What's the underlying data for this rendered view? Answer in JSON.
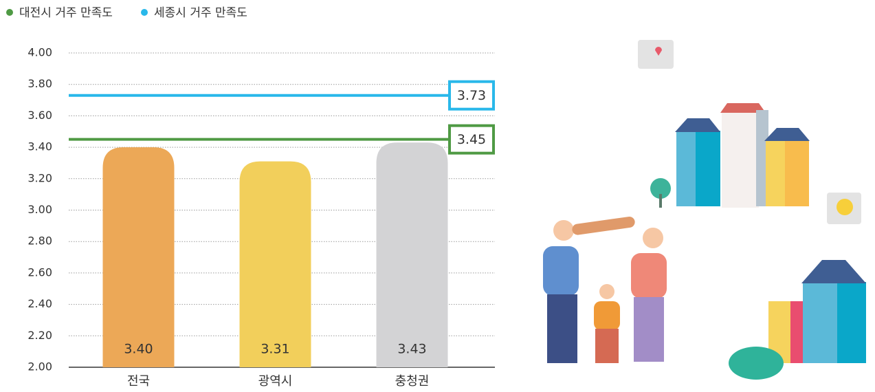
{
  "chart_data": {
    "type": "bar",
    "categories": [
      "전국",
      "광역시",
      "충청권"
    ],
    "values": [
      3.4,
      3.31,
      3.43
    ],
    "value_labels": [
      "3.40",
      "3.31",
      "3.43"
    ],
    "colors": [
      "#eca857",
      "#f2cf5b",
      "#d3d3d5"
    ],
    "reference_lines": [
      {
        "name": "대전시 거주 만족도",
        "color": "#4f9a44",
        "value": 3.45,
        "value_label": "3.45"
      },
      {
        "name": "세종시 거주 만족도",
        "color": "#29b8ea",
        "value": 3.73,
        "value_label": "3.73"
      }
    ],
    "ylim": [
      2,
      4
    ],
    "yticks": [
      {
        "value": 2,
        "label": "2.00"
      },
      {
        "value": 2.2,
        "label": "2.20"
      },
      {
        "value": 2.4,
        "label": "2.40"
      },
      {
        "value": 2.6,
        "label": "2.60"
      },
      {
        "value": 2.8,
        "label": "2.80"
      },
      {
        "value": 3,
        "label": "3.00"
      },
      {
        "value": 3.2,
        "label": "3.20"
      },
      {
        "value": 3.4,
        "label": "3.40"
      },
      {
        "value": 3.6,
        "label": "3.60"
      },
      {
        "value": 3.8,
        "label": "3.80"
      },
      {
        "value": 4,
        "label": "4.00"
      }
    ],
    "grid": true
  }
}
